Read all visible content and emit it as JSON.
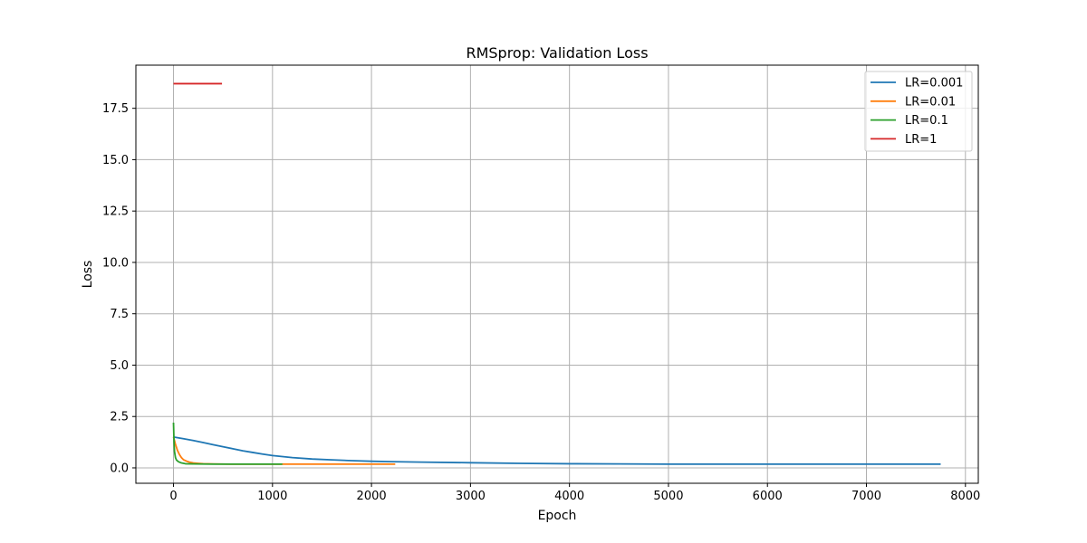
{
  "chart_data": {
    "type": "line",
    "title": "RMSprop: Validation Loss",
    "xlabel": "Epoch",
    "ylabel": "Loss",
    "xlim": [
      -380,
      8130
    ],
    "ylim": [
      -0.75,
      19.6
    ],
    "xticks": [
      0,
      1000,
      2000,
      3000,
      4000,
      5000,
      6000,
      7000,
      8000
    ],
    "xtick_labels": [
      "0",
      "1000",
      "2000",
      "3000",
      "4000",
      "5000",
      "6000",
      "7000",
      "8000"
    ],
    "yticks": [
      0.0,
      2.5,
      5.0,
      7.5,
      10.0,
      12.5,
      15.0,
      17.5
    ],
    "ytick_labels": [
      "0.0",
      "2.5",
      "5.0",
      "7.5",
      "10.0",
      "12.5",
      "15.0",
      "17.5"
    ],
    "grid": true,
    "legend_position": "top-right",
    "series": [
      {
        "name": "LR=0.001",
        "color": "#1f77b4",
        "x": [
          0,
          100,
          200,
          300,
          400,
          500,
          600,
          700,
          800,
          900,
          1000,
          1200,
          1400,
          1600,
          1800,
          2000,
          2200,
          2500,
          3000,
          3500,
          4000,
          4500,
          5000,
          5500,
          6000,
          6500,
          7000,
          7500,
          7750
        ],
        "y": [
          1.5,
          1.42,
          1.33,
          1.23,
          1.13,
          1.03,
          0.93,
          0.83,
          0.75,
          0.67,
          0.6,
          0.5,
          0.43,
          0.39,
          0.35,
          0.32,
          0.3,
          0.28,
          0.25,
          0.22,
          0.2,
          0.19,
          0.18,
          0.18,
          0.18,
          0.18,
          0.18,
          0.18,
          0.18
        ]
      },
      {
        "name": "LR=0.01",
        "color": "#ff7f0e",
        "x": [
          0,
          20,
          40,
          60,
          80,
          100,
          130,
          160,
          200,
          250,
          300,
          400,
          600,
          800,
          1000,
          1500,
          2000,
          2240
        ],
        "y": [
          1.5,
          1.15,
          0.85,
          0.65,
          0.5,
          0.4,
          0.33,
          0.28,
          0.24,
          0.22,
          0.2,
          0.19,
          0.18,
          0.18,
          0.18,
          0.18,
          0.18,
          0.18
        ]
      },
      {
        "name": "LR=0.1",
        "color": "#2ca02c",
        "x": [
          0,
          5,
          10,
          20,
          30,
          50,
          80,
          120,
          200,
          400,
          700,
          1000,
          1100
        ],
        "y": [
          2.2,
          1.3,
          0.8,
          0.5,
          0.38,
          0.3,
          0.24,
          0.2,
          0.19,
          0.18,
          0.18,
          0.18,
          0.18
        ]
      },
      {
        "name": "LR=1",
        "color": "#d62728",
        "x": [
          0,
          100,
          200,
          300,
          400,
          490
        ],
        "y": [
          18.7,
          18.7,
          18.7,
          18.7,
          18.7,
          18.7
        ]
      }
    ]
  }
}
